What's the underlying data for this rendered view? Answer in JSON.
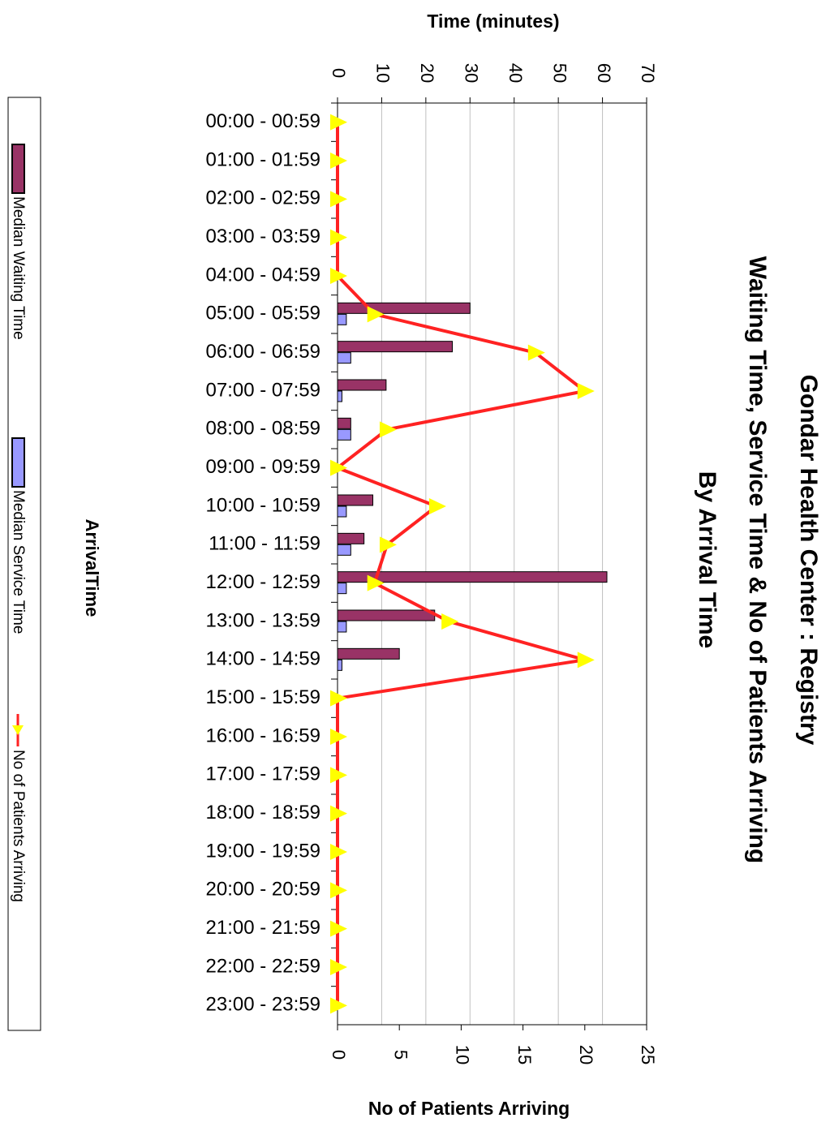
{
  "chart_data": {
    "type": "bar",
    "orientation": "horizontal",
    "title": [
      "Gondar Health Center : Registry",
      "Waiting Time, Service Time & No of Patients Arriving",
      "By Arrival Time"
    ],
    "y_label": "Time (minutes)",
    "y2_label": "No of Patients Arriving",
    "x_label": "ArrivalTime",
    "categories": [
      "00:00 - 00:59",
      "01:00 - 01:59",
      "02:00 - 02:59",
      "03:00 - 03:59",
      "04:00 - 04:59",
      "05:00 - 05:59",
      "06:00 - 06:59",
      "07:00 - 07:59",
      "08:00 - 08:59",
      "09:00 - 09:59",
      "10:00 - 10:59",
      "11:00 - 11:59",
      "12:00 - 12:59",
      "13:00 - 13:59",
      "14:00 - 14:59",
      "15:00 - 15:59",
      "16:00 - 16:59",
      "17:00 - 17:59",
      "18:00 - 18:59",
      "19:00 - 19:59",
      "20:00 - 20:59",
      "21:00 - 21:59",
      "22:00 - 22:59",
      "23:00 - 23:59"
    ],
    "series": [
      {
        "name": "Median Waiting Time",
        "type": "bar",
        "color": "#993366",
        "values": [
          0,
          0,
          0,
          0,
          0,
          30,
          26,
          11,
          3,
          0,
          8,
          6,
          61,
          22,
          14,
          0,
          0,
          0,
          0,
          0,
          0,
          0,
          0,
          0
        ]
      },
      {
        "name": "Median Service Time",
        "type": "bar",
        "color": "#9999ff",
        "values": [
          0,
          0,
          0,
          0,
          0,
          2,
          3,
          1,
          3,
          0,
          2,
          3,
          2,
          2,
          1,
          0,
          0,
          0,
          0,
          0,
          0,
          0,
          0,
          0
        ]
      },
      {
        "name": "No of Patients Arriving",
        "type": "line",
        "axis": "y2",
        "color": "#ff2222",
        "marker_color": "#ffff00",
        "values": [
          0,
          0,
          0,
          0,
          0,
          3,
          16,
          20,
          4,
          0,
          8,
          4,
          3,
          9,
          20,
          0,
          0,
          0,
          0,
          0,
          0,
          0,
          0,
          0
        ]
      }
    ],
    "ylim": [
      0,
      70
    ],
    "yticks": [
      0,
      10,
      20,
      30,
      40,
      50,
      60,
      70
    ],
    "y2lim": [
      0,
      25
    ],
    "y2ticks": [
      0,
      5,
      10,
      15,
      20,
      25
    ],
    "grid": true
  }
}
